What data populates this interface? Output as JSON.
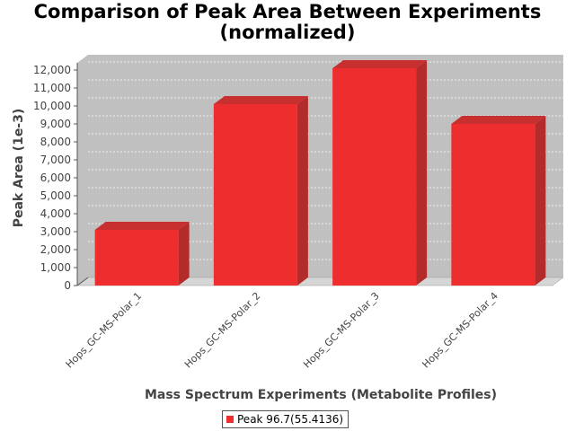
{
  "chart_data": {
    "type": "bar",
    "title": "Comparison of Peak Area Between Experiments\n(normalized)",
    "xlabel": "Mass Spectrum Experiments (Metabolite Profiles)",
    "ylabel": "Peak Area (1e-3)",
    "categories": [
      "Hops_GC-MS-Polar_1",
      "Hops_GC-MS-Polar_2",
      "Hops_GC-MS-Polar_3",
      "Hops_GC-MS-Polar_4"
    ],
    "series": [
      {
        "name": "Peak 96.7(55.4136)",
        "values": [
          3100,
          10100,
          12100,
          9000
        ],
        "color": "#ee2e2e"
      }
    ],
    "ylim": [
      0,
      12000
    ],
    "yticks": [
      0,
      1000,
      2000,
      3000,
      4000,
      5000,
      6000,
      7000,
      8000,
      9000,
      10000,
      11000,
      12000
    ],
    "ytick_labels": [
      "0",
      "1,000",
      "2,000",
      "3,000",
      "4,000",
      "5,000",
      "6,000",
      "7,000",
      "8,000",
      "9,000",
      "10,000",
      "11,000",
      "12,000"
    ],
    "grid": true,
    "legend_position": "bottom",
    "style": "3d-bar",
    "plot_background": "#c0c0c0"
  }
}
